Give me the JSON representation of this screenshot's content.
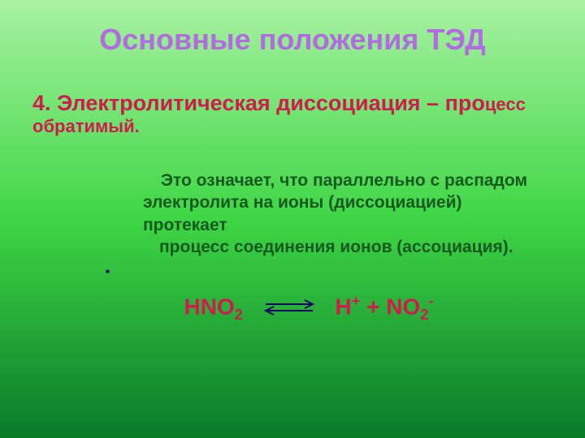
{
  "background": {
    "gradient_top": "#a8f2a2",
    "gradient_mid": "#3fd645",
    "gradient_bottom": "#0a7a2a"
  },
  "title": {
    "text": "Основные положения ТЭД",
    "color": "#b26be0",
    "fontsize": 36
  },
  "point": {
    "number_text": "4. Электролитическая диссоциация – ",
    "pro_text": "про",
    "end_text": "цесс обратимый.",
    "color": "#d11b4c",
    "fontsize_main": 27,
    "fontsize_end": 22,
    "margin_top": 42
  },
  "explain": {
    "line1": "Это означает, что параллельно с распадом",
    "line2": "электролита на ионы (диссоциацией) протекает",
    "line3": "процесс соединения ионов (ассоциация).",
    "color": "#145a1e",
    "fontsize": 21
  },
  "dot": {
    "text": "",
    "color": "#0a0a60",
    "fontsize": 8
  },
  "equation": {
    "lhs_base": "HNO",
    "lhs_sub": "2",
    "rhs1_base": "H",
    "rhs1_sup": "+",
    "plus": " + ",
    "rhs2_base": "NO",
    "rhs2_sub": "2",
    "rhs2_sup": "-",
    "color": "#d11b4c",
    "fontsize": 28,
    "arrow_color": "#0a0a60",
    "arrow_width": 70,
    "arrow_height": 22
  }
}
